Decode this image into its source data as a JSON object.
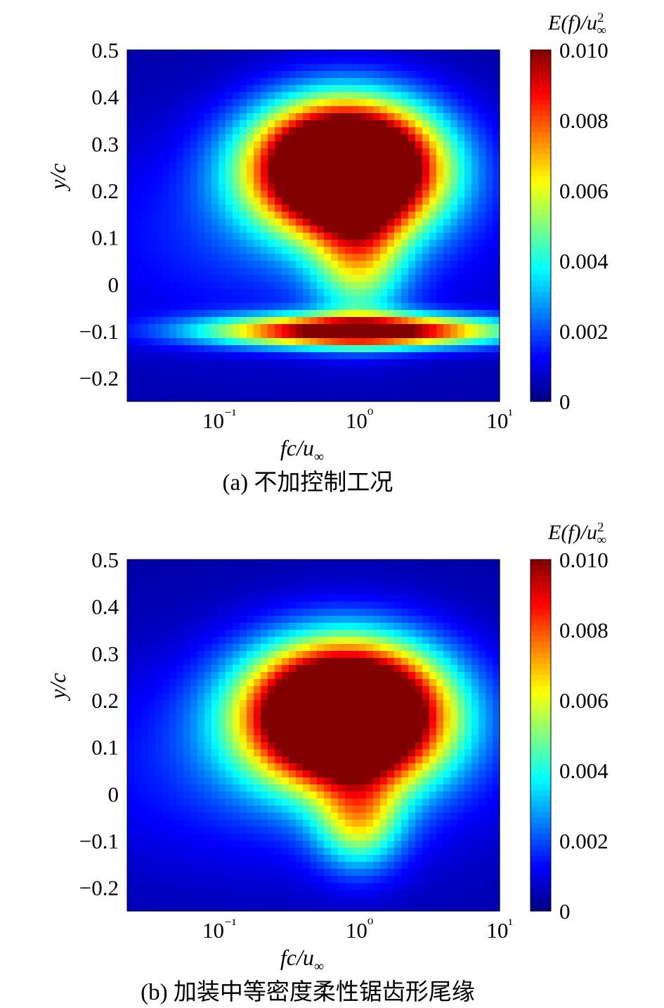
{
  "figure": {
    "panels": [
      {
        "caption": "(a) 不加控制工况",
        "colorbar_title": "E(f)/u²∞"
      },
      {
        "caption": "(b) 加装中等密度柔性锯齿形尾缘",
        "colorbar_title": "E(f)/u²∞"
      }
    ]
  },
  "chart_data": [
    {
      "type": "heatmap",
      "title": "(a) 不加控制工况",
      "xlabel": "fc/u∞",
      "ylabel": "y/c",
      "xscale": "log",
      "xlim": [
        0.022,
        10
      ],
      "ylim": [
        -0.25,
        0.5
      ],
      "xticks": [
        {
          "value": 0.1,
          "label": "10⁻¹"
        },
        {
          "value": 1,
          "label": "10⁰"
        },
        {
          "value": 10,
          "label": "10¹"
        }
      ],
      "yticks": [
        {
          "value": 0.5,
          "label": "0.5"
        },
        {
          "value": 0.4,
          "label": "0.4"
        },
        {
          "value": 0.3,
          "label": "0.3"
        },
        {
          "value": 0.2,
          "label": "0.2"
        },
        {
          "value": 0.1,
          "label": "0.1"
        },
        {
          "value": 0,
          "label": "0"
        },
        {
          "value": -0.1,
          "label": "−0.1"
        },
        {
          "value": -0.2,
          "label": "−0.2"
        }
      ],
      "colorbar": {
        "label": "E(f)/u²∞",
        "range": [
          0,
          0.01
        ],
        "ticks": [
          {
            "value": 0.01,
            "label": "0.010"
          },
          {
            "value": 0.008,
            "label": "0.008"
          },
          {
            "value": 0.006,
            "label": "0.006"
          },
          {
            "value": 0.004,
            "label": "0.004"
          },
          {
            "value": 0.002,
            "label": "0.002"
          },
          {
            "value": 0,
            "label": "0"
          }
        ]
      },
      "features": [
        {
          "desc": "upper energy core",
          "f_c": 0.8,
          "y_c": 0.25,
          "f_width_decades": 0.62,
          "y_width": 0.13,
          "peak": 0.0185
        },
        {
          "desc": "lower wake core",
          "f_c": 1.0,
          "y_c": -0.1,
          "f_width_decades": 1.0,
          "y_width": 0.033,
          "peak": 0.0108
        },
        {
          "desc": "vertical stem",
          "f_c": 1.0,
          "y_c": 0.05,
          "f_width_decades": 0.32,
          "y_width": 0.13,
          "peak": 0.0042
        },
        {
          "desc": "background band",
          "f_c": 0.3,
          "y_c": 0.1,
          "f_width_decades": 1.6,
          "y_width": 0.22,
          "peak": 0.0014
        }
      ]
    },
    {
      "type": "heatmap",
      "title": "(b) 加装中等密度柔性锯齿形尾缘",
      "xlabel": "fc/u∞",
      "ylabel": "y/c",
      "xscale": "log",
      "xlim": [
        0.022,
        10
      ],
      "ylim": [
        -0.25,
        0.5
      ],
      "xticks": [
        {
          "value": 0.1,
          "label": "10⁻¹"
        },
        {
          "value": 1,
          "label": "10⁰"
        },
        {
          "value": 10,
          "label": "10¹"
        }
      ],
      "yticks": [
        {
          "value": 0.5,
          "label": "0.5"
        },
        {
          "value": 0.4,
          "label": "0.4"
        },
        {
          "value": 0.3,
          "label": "0.3"
        },
        {
          "value": 0.2,
          "label": "0.2"
        },
        {
          "value": 0.1,
          "label": "0.1"
        },
        {
          "value": 0,
          "label": "0"
        },
        {
          "value": -0.1,
          "label": "−0.1"
        },
        {
          "value": -0.2,
          "label": "−0.2"
        }
      ],
      "colorbar": {
        "label": "E(f)/u²∞",
        "range": [
          0,
          0.01
        ],
        "ticks": [
          {
            "value": 0.01,
            "label": "0.010"
          },
          {
            "value": 0.008,
            "label": "0.008"
          },
          {
            "value": 0.006,
            "label": "0.006"
          },
          {
            "value": 0.004,
            "label": "0.004"
          },
          {
            "value": 0.002,
            "label": "0.002"
          },
          {
            "value": 0,
            "label": "0"
          }
        ]
      },
      "features": [
        {
          "desc": "energy core",
          "f_c": 0.8,
          "y_c": 0.17,
          "f_width_decades": 0.66,
          "y_width": 0.14,
          "peak": 0.0185
        },
        {
          "desc": "lower stem",
          "f_c": 1.0,
          "y_c": -0.06,
          "f_width_decades": 0.3,
          "y_width": 0.1,
          "peak": 0.0045
        },
        {
          "desc": "background band",
          "f_c": 0.3,
          "y_c": 0.06,
          "f_width_decades": 1.6,
          "y_width": 0.22,
          "peak": 0.0015
        }
      ]
    }
  ]
}
